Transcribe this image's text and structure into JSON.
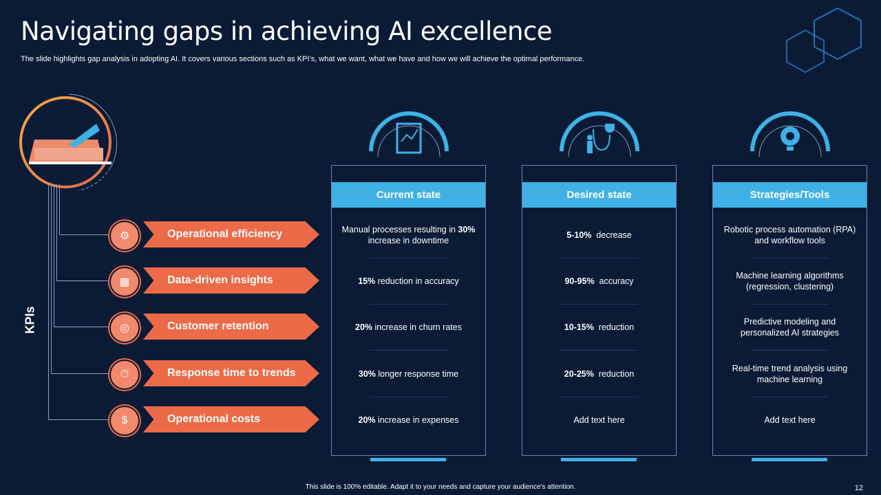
{
  "title": "Navigating gaps in achieving AI excellence",
  "subtitle": "The slide highlights gap analysis in adopting AI. It covers various sections such as KPI’s, what we want, what we have and how we will achieve the optimal performance.",
  "kpi_label": "KPIs",
  "kpis": [
    {
      "label": "Operational efficiency",
      "icon": "efficiency-icon"
    },
    {
      "label": "Data-driven insights",
      "icon": "insights-icon"
    },
    {
      "label": "Customer retention",
      "icon": "retention-icon"
    },
    {
      "label": "Response time to trends",
      "icon": "response-time-icon"
    },
    {
      "label": "Operational costs",
      "icon": "costs-icon"
    }
  ],
  "columns": [
    {
      "header": "Current state",
      "icon": "report-chart-icon",
      "cells": [
        {
          "pre": "Manual processes resulting in ",
          "bold": "30%",
          "post": " increase in downtime"
        },
        {
          "bold": "15%",
          "post": " reduction in accuracy"
        },
        {
          "bold": "20%",
          "post": " increase in churn rates"
        },
        {
          "bold": "30%",
          "post": " longer response time"
        },
        {
          "bold": "20%",
          "post": " increase in expenses"
        }
      ]
    },
    {
      "header": "Desired state",
      "icon": "person-trophy-path-icon",
      "cells": [
        {
          "bold": "5-10%",
          "post": "  decrease"
        },
        {
          "bold": "90-95%",
          "post": "  accuracy"
        },
        {
          "bold": "10-15%",
          "post": "  reduction"
        },
        {
          "bold": "20-25%",
          "post": "  reduction"
        },
        {
          "post": "Add text here"
        }
      ]
    },
    {
      "header": "Strategies/Tools",
      "icon": "gear-lightbulb-icon",
      "cells": [
        {
          "post": "Robotic process automation (RPA) and workflow tools"
        },
        {
          "post": "Machine learning algorithms (regression, clustering)"
        },
        {
          "post": "Predictive modeling and personalized AI strategies"
        },
        {
          "post": "Real-time trend analysis using machine learning"
        },
        {
          "post": "Add text here"
        }
      ]
    }
  ],
  "footer": "This slide is 100% editable. Adapt it to your needs and capture your audience's attention.",
  "page_number": "12",
  "colors": {
    "background": "#0b1b36",
    "accent_blue": "#3fb1e6",
    "accent_orange": "#ec6a47"
  }
}
